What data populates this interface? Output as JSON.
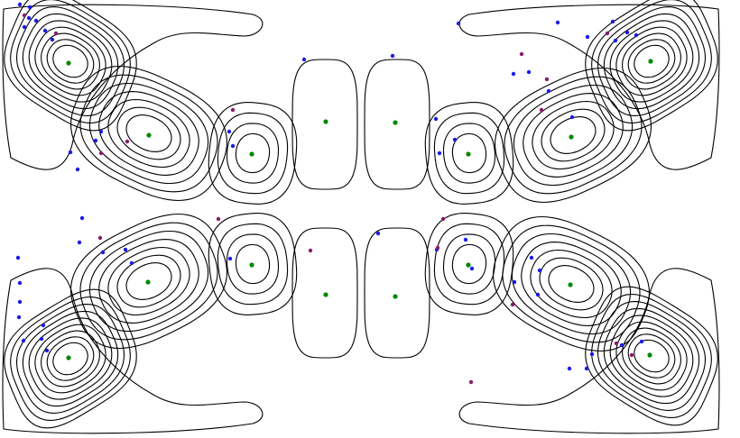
{
  "colors": {
    "background": "#ffffff",
    "contour_stroke": "#000000",
    "center_marker": "#008800",
    "point_blue": "#1a1ae6",
    "point_purple": "#8a1a6a"
  },
  "field": {
    "description_kind": "nested closed contour loops forming a 4x2 antisymmetric vortex pattern",
    "levels_large_cells": 9,
    "levels_medium_cells": 7,
    "levels_small_cells": 4,
    "levels_center_cells": 1
  },
  "marker_counts": {
    "cell_centers": 16,
    "blue_points": 52,
    "purple_points": 18
  }
}
